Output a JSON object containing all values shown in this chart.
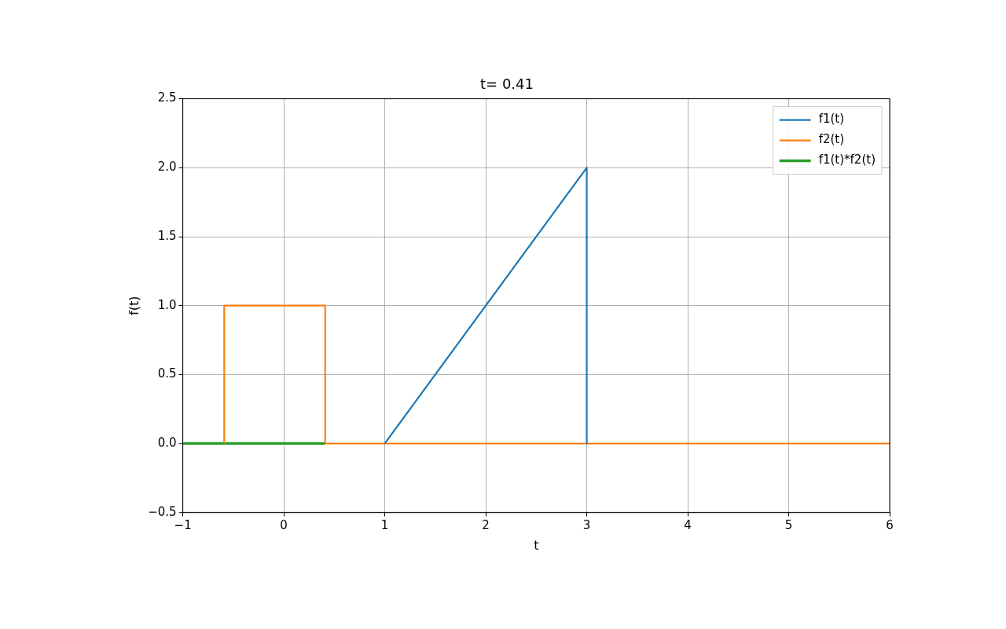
{
  "chart_data": {
    "type": "line",
    "title": "t= 0.41",
    "xlabel": "t",
    "ylabel": "f(t)",
    "series": [
      {
        "name": "f1(t)",
        "color": "#1f77b4",
        "x": [
          1,
          3,
          3
        ],
        "values": [
          0,
          2,
          0
        ]
      },
      {
        "name": "f2(t)",
        "color": "#ff7f0e",
        "x": [
          -0.59,
          -0.59,
          0.41,
          0.41,
          6
        ],
        "values": [
          0,
          1,
          1,
          0,
          0
        ]
      },
      {
        "name": "f1(t)*f2(t)",
        "color": "#2ca02c",
        "x": [
          -1,
          0.41
        ],
        "values": [
          0,
          0
        ]
      }
    ],
    "xlim": [
      -1,
      6
    ],
    "xticks": [
      {
        "value": -1,
        "label": "−1"
      },
      0,
      1,
      2,
      3,
      4,
      5,
      6
    ],
    "ylim": [
      -0.5,
      2.5
    ],
    "yticks": [
      {
        "value": -0.5,
        "label": "−0.5"
      },
      {
        "value": 0,
        "label": "0.0"
      },
      0.5,
      {
        "value": 1,
        "label": "1.0"
      },
      1.5,
      {
        "value": 2,
        "label": "2.0"
      },
      2.5
    ],
    "grid": true,
    "legend": "top right"
  }
}
